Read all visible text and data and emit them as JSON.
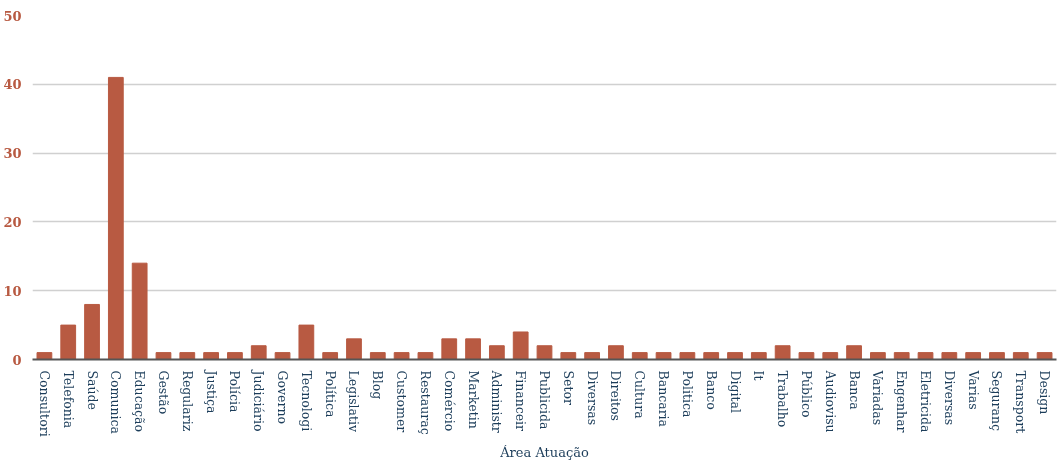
{
  "chart_data": {
    "type": "bar",
    "xlabel": "Área Atuação",
    "categories": [
      "Consultori",
      "Telefonia",
      "Saúde",
      "Comunica",
      "Educação",
      "Gestão",
      "Regulariz",
      "Justiça",
      "Polícia",
      "Judiciário",
      "Governo",
      "Tecnologi",
      "Política",
      "Legislativ",
      "Blog",
      "Customer",
      "Restauraç",
      "Comércio",
      "Marketin",
      "Administr",
      "Financeir",
      "Publicida",
      "Setor",
      "Diversas",
      "Direitos",
      "Cultura",
      "Bancaria",
      "Politica",
      "Banco",
      "Digital",
      "It",
      "Trabalho",
      "Público",
      "Audiovisu",
      "Banca",
      "Variadas",
      "Engenhar",
      "Eletricida",
      "Diversas",
      "Varias",
      "Seguranç",
      "Transport",
      "Design"
    ],
    "values": [
      1,
      5,
      8,
      41,
      14,
      1,
      1,
      1,
      1,
      2,
      1,
      5,
      1,
      3,
      1,
      1,
      1,
      3,
      3,
      2,
      4,
      2,
      1,
      1,
      2,
      1,
      1,
      1,
      1,
      1,
      1,
      2,
      1,
      1,
      2,
      1,
      1,
      1,
      1,
      1,
      1,
      1,
      1
    ],
    "color": "#b85a42",
    "ylim": [
      0,
      50
    ],
    "yticks": [
      0,
      10,
      20,
      30,
      40,
      50
    ],
    "grid": "y"
  }
}
